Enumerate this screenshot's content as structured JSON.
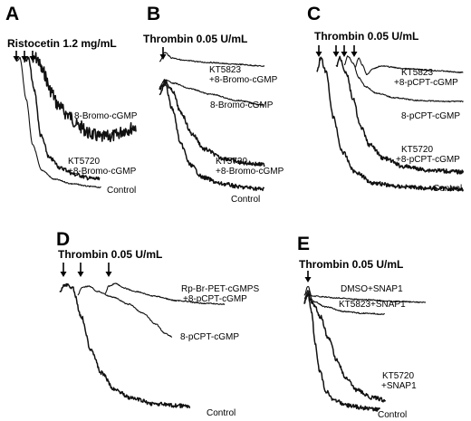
{
  "figure": {
    "panels": [
      {
        "id": "A",
        "agonist": "Ristocetin 1.2 mg/mL",
        "traces": [
          {
            "label": [
              "8-Bromo-cGMP"
            ],
            "noise": "high"
          },
          {
            "label": [
              "KT5720",
              "+8-Bromo-cGMP"
            ],
            "noise": "medium"
          },
          {
            "label": [
              "Control"
            ],
            "noise": "low"
          }
        ]
      },
      {
        "id": "B",
        "agonist": "Thrombin 0.05 U/mL",
        "traces": [
          {
            "label": [
              "KT5823",
              "+8-Bromo-cGMP"
            ],
            "noise": "low"
          },
          {
            "label": [
              "8-Bromo-cGMP"
            ],
            "noise": "low"
          },
          {
            "label": [
              "KT5720",
              "+8-Bromo-cGMP"
            ],
            "noise": "medium"
          },
          {
            "label": [
              "Control"
            ],
            "noise": "medium"
          }
        ]
      },
      {
        "id": "C",
        "agonist": "Thrombin 0.05 U/mL",
        "traces": [
          {
            "label": [
              "KT5823",
              "+8-pCPT-cGMP"
            ],
            "noise": "low"
          },
          {
            "label": [
              "8-pCPT-cGMP"
            ],
            "noise": "low"
          },
          {
            "label": [
              "KT5720",
              "+8-pCPT-cGMP"
            ],
            "noise": "medium"
          },
          {
            "label": [
              "Control"
            ],
            "noise": "medium"
          }
        ]
      },
      {
        "id": "D",
        "agonist": "Thrombin 0.05 U/mL",
        "traces": [
          {
            "label": [
              "Rp-Br-PET-cGMPS",
              "+8-pCPT-cGMP"
            ],
            "noise": "low"
          },
          {
            "label": [
              "8-pCPT-cGMP"
            ],
            "noise": "low"
          },
          {
            "label": [
              "Control"
            ],
            "noise": "medium"
          }
        ]
      },
      {
        "id": "E",
        "agonist": "Thrombin 0.05 U/mL",
        "traces": [
          {
            "label": [
              "DMSO+SNAP1"
            ],
            "noise": "low"
          },
          {
            "label": [
              "KT5823+SNAP1"
            ],
            "noise": "low"
          },
          {
            "label": [
              "KT5720",
              "+SNAP1"
            ],
            "noise": "medium"
          },
          {
            "label": [
              "Control"
            ],
            "noise": "medium"
          }
        ]
      }
    ]
  },
  "chart_data": {
    "type": "line",
    "xlabel": "",
    "ylabel": "",
    "grid": false,
    "note": "Platelet aggregation traces; no numeric axes are printed."
  }
}
